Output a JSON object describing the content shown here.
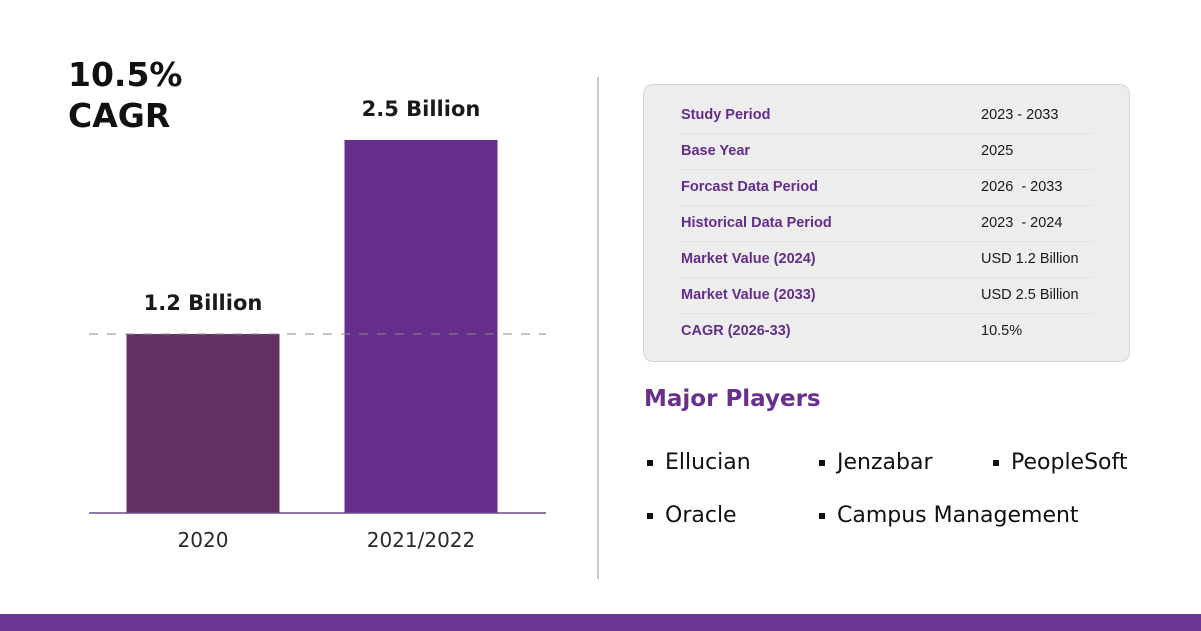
{
  "headline": {
    "line1": "10.5%",
    "line2": "CAGR"
  },
  "chart_data": {
    "type": "bar",
    "categories": [
      "2020",
      "2021/2022"
    ],
    "values": [
      1.2,
      2.5
    ],
    "data_labels": [
      "1.2 Billion",
      "2.5 Billion"
    ],
    "colors": [
      "#633262",
      "#662e8a"
    ],
    "ylim": [
      0,
      2.8
    ],
    "reference_line": {
      "value": 1.2,
      "style": "dashed"
    },
    "title": "",
    "xlabel": "",
    "ylabel": ""
  },
  "info_table": [
    {
      "label": "Study Period",
      "value": "2023 - 2033"
    },
    {
      "label": "Base Year",
      "value": "2025"
    },
    {
      "label": "Forcast Data Period",
      "value": "2026  - 2033"
    },
    {
      "label": "Historical Data Period",
      "value": "2023  - 2024"
    },
    {
      "label": "Market Value (2024)",
      "value": "USD 1.2 Billion"
    },
    {
      "label": "Market Value (2033)",
      "value": "USD 2.5 Billion"
    },
    {
      "label": "CAGR (2026-33)",
      "value": "10.5%"
    }
  ],
  "players": {
    "title": "Major Players",
    "items": [
      "Ellucian",
      "Jenzabar",
      "PeopleSoft",
      "Oracle",
      "Campus Management"
    ]
  },
  "colors": {
    "accent": "#642d8a",
    "footer": "#6b3592",
    "panel_bg": "#ededed"
  }
}
